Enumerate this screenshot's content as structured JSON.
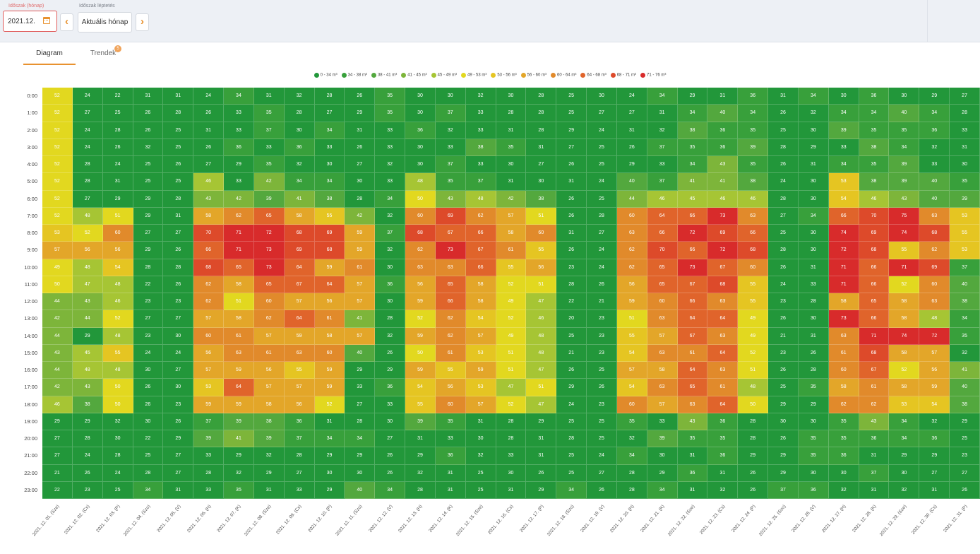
{
  "header": {
    "period_label": "Időszak (hónap)",
    "step_label": "Időszak léptetés",
    "period_value": "2021.12.",
    "prev_glyph": "‹",
    "next_glyph": "›",
    "current_month_label": "Aktuális hónap",
    "calendar_icon": "calendar-icon"
  },
  "tabs": [
    {
      "label": "Diagram",
      "active": true
    },
    {
      "label": "Trendek",
      "active": false,
      "badge": "5"
    }
  ],
  "chart_data": {
    "type": "heatmap",
    "title": "",
    "xlabel": "",
    "ylabel": "",
    "x": [
      "2021. 12. 01. (Sze)",
      "2021. 12. 02. (Cs)",
      "2021. 12. 03. (P)",
      "2021. 12. 04. (Szo)",
      "2021. 12. 05. (V)",
      "2021. 12. 06. (H)",
      "2021. 12. 07. (K)",
      "2021. 12. 08. (Sze)",
      "2021. 12. 09. (Cs)",
      "2021. 12. 10. (P)",
      "2021. 12. 11. (Szo)",
      "2021. 12. 12. (V)",
      "2021. 12. 13. (H)",
      "2021. 12. 14. (K)",
      "2021. 12. 15. (Sze)",
      "2021. 12. 16. (Cs)",
      "2021. 12. 17. (P)",
      "2021. 12. 18. (Szo)",
      "2021. 12. 19. (V)",
      "2021. 12. 20. (H)",
      "2021. 12. 21. (K)",
      "2021. 12. 22. (Sze)",
      "2021. 12. 23. (Cs)",
      "2021. 12. 24. (P)",
      "2021. 12. 25. (Szo)",
      "2021. 12. 26. (V)",
      "2021. 12. 27. (H)",
      "2021. 12. 28. (K)",
      "2021. 12. 29. (Sze)",
      "2021. 12. 30. (Cs)",
      "2021. 12. 31. (P)"
    ],
    "y": [
      "0:00",
      "1:00",
      "2:00",
      "3:00",
      "4:00",
      "5:00",
      "6:00",
      "7:00",
      "8:00",
      "9:00",
      "10:00",
      "11:00",
      "12:00",
      "13:00",
      "14:00",
      "15:00",
      "16:00",
      "17:00",
      "18:00",
      "19:00",
      "20:00",
      "21:00",
      "22:00",
      "23:00"
    ],
    "values": [
      [
        52,
        24,
        22,
        31,
        31,
        24,
        34,
        31,
        32,
        28,
        26,
        35,
        30,
        30,
        32,
        30,
        28,
        25,
        30,
        24,
        34,
        29,
        31,
        36,
        31,
        34,
        30,
        36,
        30,
        29,
        27
      ],
      [
        52,
        27,
        25,
        26,
        28,
        26,
        33,
        35,
        28,
        27,
        29,
        35,
        30,
        37,
        33,
        28,
        28,
        25,
        27,
        27,
        31,
        34,
        40,
        34,
        26,
        32,
        34,
        34,
        40,
        34,
        28
      ],
      [
        52,
        24,
        28,
        26,
        25,
        31,
        33,
        37,
        30,
        34,
        31,
        33,
        36,
        32,
        33,
        31,
        28,
        29,
        24,
        31,
        32,
        38,
        36,
        35,
        25,
        30,
        39,
        35,
        35,
        36,
        33
      ],
      [
        52,
        24,
        26,
        32,
        25,
        26,
        36,
        33,
        36,
        33,
        26,
        33,
        30,
        33,
        38,
        35,
        31,
        27,
        25,
        26,
        37,
        35,
        36,
        39,
        28,
        29,
        33,
        38,
        34,
        32,
        31
      ],
      [
        52,
        28,
        24,
        25,
        26,
        27,
        29,
        35,
        32,
        30,
        27,
        32,
        30,
        37,
        33,
        30,
        27,
        26,
        25,
        29,
        33,
        34,
        43,
        35,
        26,
        31,
        34,
        35,
        39,
        33,
        30
      ],
      [
        52,
        28,
        31,
        25,
        25,
        46,
        33,
        42,
        34,
        34,
        30,
        33,
        48,
        35,
        37,
        31,
        30,
        31,
        24,
        40,
        37,
        41,
        41,
        38,
        24,
        30,
        53,
        38,
        39,
        40,
        35
      ],
      [
        52,
        27,
        29,
        29,
        28,
        43,
        42,
        39,
        41,
        38,
        28,
        34,
        50,
        43,
        48,
        42,
        38,
        26,
        25,
        44,
        46,
        45,
        46,
        46,
        28,
        30,
        54,
        46,
        43,
        40,
        39
      ],
      [
        52,
        48,
        51,
        29,
        31,
        58,
        62,
        65,
        58,
        55,
        42,
        32,
        60,
        69,
        62,
        57,
        51,
        26,
        28,
        60,
        64,
        66,
        73,
        63,
        27,
        34,
        66,
        70,
        75,
        63,
        53
      ],
      [
        53,
        52,
        60,
        27,
        27,
        70,
        71,
        72,
        68,
        69,
        59,
        37,
        68,
        67,
        66,
        58,
        60,
        31,
        27,
        63,
        66,
        72,
        69,
        66,
        25,
        30,
        74,
        69,
        74,
        68,
        55
      ],
      [
        57,
        56,
        56,
        29,
        26,
        66,
        71,
        73,
        69,
        68,
        59,
        32,
        62,
        73,
        67,
        61,
        55,
        26,
        24,
        62,
        70,
        66,
        72,
        68,
        28,
        30,
        72,
        68,
        55,
        62,
        53
      ],
      [
        49,
        48,
        54,
        28,
        28,
        68,
        65,
        73,
        64,
        59,
        61,
        30,
        63,
        63,
        66,
        55,
        56,
        23,
        24,
        62,
        65,
        73,
        67,
        60,
        26,
        31,
        71,
        66,
        71,
        69,
        37
      ],
      [
        50,
        47,
        48,
        22,
        26,
        62,
        58,
        65,
        67,
        64,
        57,
        36,
        56,
        65,
        58,
        52,
        51,
        28,
        26,
        56,
        65,
        67,
        68,
        55,
        24,
        33,
        71,
        66,
        52,
        60,
        40
      ],
      [
        44,
        43,
        46,
        23,
        23,
        62,
        51,
        60,
        57,
        56,
        57,
        30,
        59,
        66,
        58,
        49,
        47,
        22,
        21,
        59,
        60,
        66,
        63,
        55,
        23,
        28,
        58,
        65,
        58,
        63,
        38
      ],
      [
        42,
        44,
        52,
        27,
        27,
        57,
        58,
        62,
        64,
        61,
        41,
        28,
        52,
        62,
        54,
        52,
        46,
        20,
        23,
        51,
        63,
        64,
        64,
        49,
        26,
        30,
        73,
        66,
        58,
        48,
        34
      ],
      [
        44,
        29,
        48,
        23,
        30,
        60,
        61,
        57,
        59,
        58,
        57,
        32,
        59,
        62,
        57,
        49,
        48,
        25,
        23,
        55,
        57,
        67,
        63,
        49,
        21,
        31,
        63,
        71,
        74,
        72,
        35
      ],
      [
        43,
        45,
        55,
        24,
        24,
        56,
        63,
        61,
        63,
        60,
        40,
        26,
        50,
        61,
        53,
        51,
        48,
        21,
        23,
        54,
        63,
        61,
        64,
        52,
        23,
        26,
        61,
        68,
        58,
        57,
        32
      ],
      [
        44,
        48,
        48,
        30,
        27,
        57,
        59,
        56,
        55,
        59,
        29,
        29,
        59,
        55,
        59,
        51,
        47,
        26,
        25,
        57,
        58,
        64,
        63,
        51,
        26,
        28,
        60,
        67,
        52,
        56,
        41
      ],
      [
        42,
        43,
        50,
        26,
        30,
        53,
        64,
        57,
        57,
        59,
        33,
        36,
        54,
        56,
        53,
        47,
        51,
        29,
        26,
        54,
        63,
        65,
        61,
        48,
        25,
        35,
        58,
        61,
        58,
        59,
        40
      ],
      [
        46,
        38,
        50,
        26,
        23,
        59,
        59,
        58,
        56,
        52,
        27,
        33,
        55,
        60,
        57,
        52,
        47,
        24,
        23,
        60,
        57,
        63,
        64,
        50,
        29,
        29,
        62,
        62,
        53,
        54,
        38
      ],
      [
        29,
        29,
        32,
        30,
        26,
        37,
        39,
        38,
        36,
        31,
        28,
        30,
        39,
        35,
        31,
        28,
        29,
        25,
        25,
        35,
        33,
        43,
        36,
        28,
        30,
        30,
        35,
        43,
        34,
        32,
        29
      ],
      [
        27,
        28,
        30,
        22,
        29,
        39,
        41,
        39,
        37,
        34,
        34,
        27,
        31,
        33,
        30,
        28,
        31,
        28,
        25,
        32,
        39,
        35,
        35,
        28,
        26,
        35,
        35,
        36,
        34,
        36,
        25
      ],
      [
        27,
        24,
        28,
        25,
        27,
        33,
        29,
        32,
        28,
        29,
        29,
        26,
        29,
        36,
        32,
        33,
        31,
        25,
        24,
        34,
        30,
        31,
        36,
        29,
        29,
        35,
        36,
        31,
        29,
        29,
        23
      ],
      [
        21,
        26,
        24,
        28,
        27,
        28,
        32,
        29,
        27,
        30,
        30,
        26,
        32,
        31,
        25,
        30,
        26,
        25,
        27,
        28,
        29,
        36,
        31,
        26,
        29,
        30,
        30,
        37,
        30,
        27,
        27
      ],
      [
        22,
        23,
        25,
        34,
        31,
        33,
        35,
        31,
        33,
        29,
        40,
        34,
        28,
        31,
        25,
        31,
        29,
        34,
        26,
        28,
        34,
        31,
        32,
        26,
        37,
        36,
        32,
        31,
        32,
        31,
        26
      ]
    ],
    "legend_position": "top",
    "bins": [
      {
        "label": "0 - 34 m³",
        "min": 0,
        "max": 34,
        "color": "#22973a"
      },
      {
        "label": "34 - 38 m³",
        "min": 34,
        "max": 38,
        "color": "#38a03b"
      },
      {
        "label": "38 - 41 m³",
        "min": 38,
        "max": 41,
        "color": "#53a83e"
      },
      {
        "label": "41 - 45 m³",
        "min": 41,
        "max": 45,
        "color": "#7db53a"
      },
      {
        "label": "45 - 49 m³",
        "min": 45,
        "max": 49,
        "color": "#a6c534"
      },
      {
        "label": "49 - 53 m³",
        "min": 49,
        "max": 53,
        "color": "#e2d81f"
      },
      {
        "label": "53 - 56 m³",
        "min": 53,
        "max": 56,
        "color": "#e5c522"
      },
      {
        "label": "56 - 60 m³",
        "min": 56,
        "max": 60,
        "color": "#e3a629"
      },
      {
        "label": "60 - 64 m³",
        "min": 60,
        "max": 64,
        "color": "#e18a2b"
      },
      {
        "label": "64 - 68 m³",
        "min": 64,
        "max": 68,
        "color": "#e0642b"
      },
      {
        "label": "68 - 71 m³",
        "min": 68,
        "max": 71,
        "color": "#dd4a2a"
      },
      {
        "label": "71 - 76 m³",
        "min": 71,
        "max": 76,
        "color": "#d82b2b"
      }
    ]
  }
}
